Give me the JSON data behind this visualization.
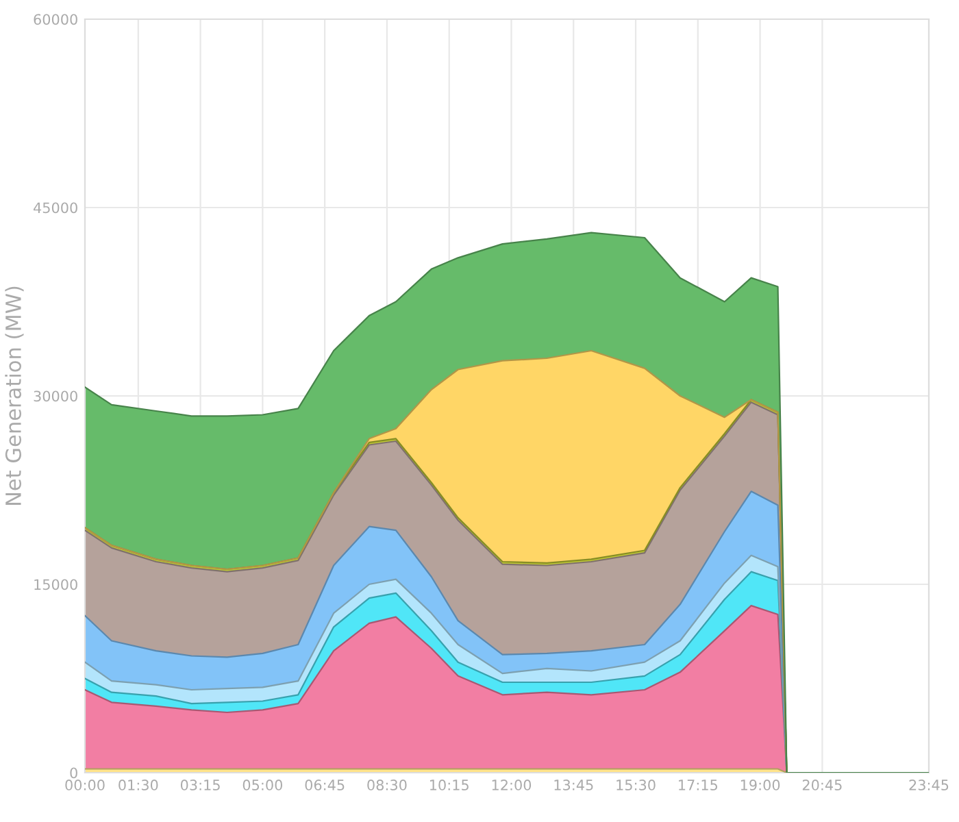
{
  "chart_data": {
    "type": "area",
    "stacked": true,
    "ylabel": "Net Generation (MW)",
    "x": [
      0,
      0.75,
      2,
      3,
      4,
      5,
      6,
      7,
      8,
      8.75,
      9.75,
      10.5,
      11.75,
      13,
      14.25,
      15.75,
      16.75,
      18,
      18.75,
      19.5,
      19.75,
      23.75
    ],
    "series": [
      {
        "color": "#ffe38a",
        "values": [
          300,
          300,
          300,
          300,
          300,
          300,
          300,
          300,
          300,
          300,
          300,
          300,
          300,
          300,
          300,
          300,
          300,
          300,
          300,
          300,
          0,
          0
        ]
      },
      {
        "color": "#f27ea3",
        "values": [
          6300,
          5300,
          5000,
          4700,
          4500,
          4700,
          5200,
          9400,
          11600,
          12100,
          9600,
          7400,
          5900,
          6100,
          5900,
          6300,
          7700,
          11000,
          13000,
          12300,
          0,
          0
        ]
      },
      {
        "color": "#50e6f7",
        "values": [
          900,
          800,
          800,
          500,
          800,
          700,
          700,
          1900,
          2000,
          1900,
          1400,
          1100,
          1000,
          800,
          1000,
          1100,
          1400,
          2500,
          2700,
          2700,
          0,
          0
        ]
      },
      {
        "color": "#b3e5fc",
        "values": [
          1300,
          900,
          900,
          1100,
          1100,
          1100,
          1100,
          1100,
          1100,
          1100,
          1400,
          1400,
          700,
          1100,
          900,
          1100,
          1100,
          1300,
          1300,
          1100,
          0,
          0
        ]
      },
      {
        "color": "#82c3f8",
        "values": [
          3700,
          3200,
          2700,
          2700,
          2500,
          2700,
          2900,
          3800,
          4600,
          3900,
          2900,
          1900,
          1500,
          1200,
          1600,
          1400,
          2900,
          4100,
          5100,
          4900,
          0,
          0
        ]
      },
      {
        "color": "#b5a29b",
        "values": [
          6800,
          7400,
          7100,
          7000,
          6800,
          6800,
          6700,
          5600,
          6500,
          7100,
          7300,
          8000,
          7200,
          7000,
          7100,
          7300,
          9100,
          7600,
          7100,
          7200,
          0,
          0
        ]
      },
      {
        "color": "#c0ca33",
        "values": [
          200,
          200,
          200,
          200,
          200,
          200,
          200,
          200,
          200,
          200,
          200,
          200,
          200,
          200,
          200,
          200,
          200,
          200,
          200,
          200,
          0,
          0
        ]
      },
      {
        "color": "#ffd666",
        "values": [
          0,
          0,
          0,
          0,
          0,
          0,
          0,
          0,
          300,
          800,
          7400,
          11800,
          16000,
          16300,
          16600,
          14500,
          7300,
          1300,
          0,
          0,
          0,
          0
        ]
      },
      {
        "color": "#66bb6a",
        "values": [
          11200,
          11200,
          11800,
          11900,
          12200,
          12000,
          11900,
          11300,
          9800,
          10100,
          9600,
          8900,
          9300,
          9500,
          9400,
          10400,
          9400,
          9200,
          9700,
          10000,
          0,
          0
        ]
      }
    ],
    "xlim": [
      0,
      23.75
    ],
    "xticks": [
      {
        "value": 0,
        "label": "00:00"
      },
      {
        "value": 1.5,
        "label": "01:30"
      },
      {
        "value": 3.25,
        "label": "03:15"
      },
      {
        "value": 5,
        "label": "05:00"
      },
      {
        "value": 6.75,
        "label": "06:45"
      },
      {
        "value": 8.5,
        "label": "08:30"
      },
      {
        "value": 10.25,
        "label": "10:15"
      },
      {
        "value": 12,
        "label": "12:00"
      },
      {
        "value": 13.75,
        "label": "13:45"
      },
      {
        "value": 15.5,
        "label": "15:30"
      },
      {
        "value": 17.25,
        "label": "17:15"
      },
      {
        "value": 19,
        "label": "19:00"
      },
      {
        "value": 20.75,
        "label": "20:45"
      },
      {
        "value": 23.75,
        "label": "23:45"
      }
    ],
    "ylim": [
      0,
      60000
    ],
    "yticks": [
      0,
      15000,
      30000,
      45000,
      60000
    ],
    "grid": true
  }
}
